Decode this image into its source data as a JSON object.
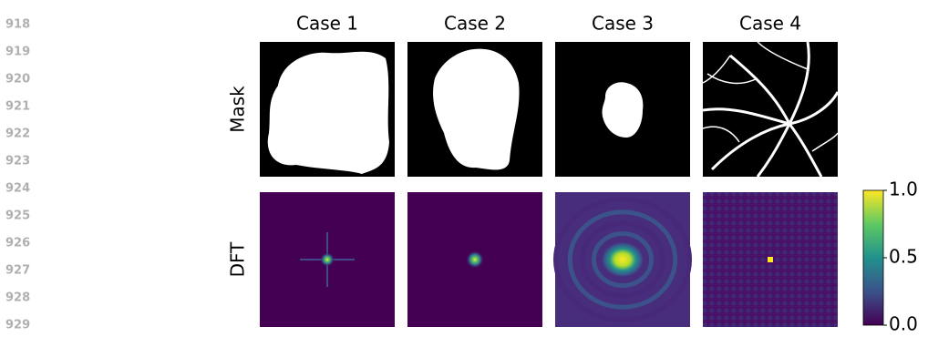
{
  "line_numbers": [
    "918",
    "919",
    "920",
    "921",
    "922",
    "923",
    "924",
    "925",
    "926",
    "927",
    "928",
    "929"
  ],
  "figure": {
    "columns": [
      "Case 1",
      "Case 2",
      "Case 3",
      "Case 4"
    ],
    "rows": [
      "Mask",
      "DFT"
    ],
    "colorbar": {
      "lim": [
        0,
        1
      ],
      "ticks": [
        {
          "value": 1,
          "label": "1.0"
        },
        {
          "value": 0.5,
          "label": "0.5"
        },
        {
          "value": 0,
          "label": "0.0"
        }
      ]
    }
  }
}
